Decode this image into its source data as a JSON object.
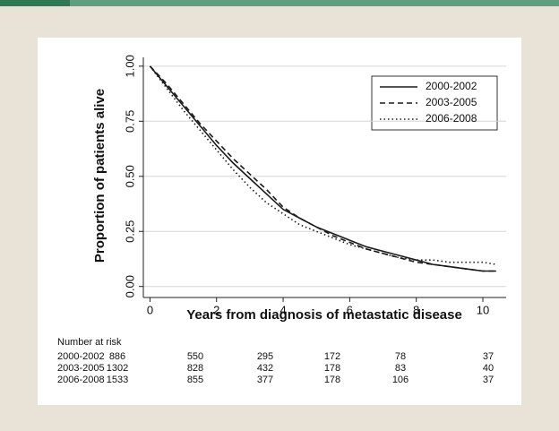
{
  "chart_data": {
    "type": "line",
    "xlabel": "Years from diagnosis of metastatic disease",
    "ylabel": "Proportion of patients alive",
    "x": [
      0,
      0.5,
      1,
      1.5,
      2,
      2.5,
      3,
      3.5,
      4,
      4.5,
      5,
      5.5,
      6,
      6.5,
      7,
      7.5,
      8,
      8.5,
      9,
      9.5,
      10,
      10.4
    ],
    "series": [
      {
        "name": "2000-2002",
        "color": "#1a1a1a",
        "dash": "solid",
        "values": [
          1.0,
          0.91,
          0.82,
          0.73,
          0.64,
          0.56,
          0.49,
          0.42,
          0.35,
          0.31,
          0.27,
          0.24,
          0.21,
          0.18,
          0.16,
          0.14,
          0.12,
          0.1,
          0.09,
          0.08,
          0.07,
          0.07
        ]
      },
      {
        "name": "2003-2005",
        "color": "#1a1a1a",
        "dash": "dashed",
        "values": [
          1.0,
          0.92,
          0.83,
          0.74,
          0.66,
          0.58,
          0.51,
          0.44,
          0.36,
          0.31,
          0.27,
          0.23,
          0.2,
          0.17,
          0.15,
          0.13,
          0.11,
          0.1,
          0.09,
          0.08,
          0.07,
          0.07
        ]
      },
      {
        "name": "2006-2008",
        "color": "#1a1a1a",
        "dash": "dotted",
        "values": [
          1.0,
          0.9,
          0.8,
          0.71,
          0.62,
          0.53,
          0.45,
          0.38,
          0.33,
          0.28,
          0.25,
          0.22,
          0.19,
          0.17,
          0.15,
          0.13,
          0.12,
          0.12,
          0.11,
          0.11,
          0.11,
          0.1
        ]
      }
    ],
    "xlim": [
      -0.2,
      10.7
    ],
    "xticks": [
      0,
      2,
      4,
      6,
      8,
      10
    ],
    "ylim": [
      -0.05,
      1.04
    ],
    "yticks": [
      {
        "value": 0,
        "label": "0.00"
      },
      {
        "value": 0.25,
        "label": "0.25"
      },
      {
        "value": 0.5,
        "label": "0.50"
      },
      {
        "value": 0.75,
        "label": "0.75"
      },
      {
        "value": 1,
        "label": "1.00"
      }
    ],
    "grid": true,
    "legend": "upper-right",
    "risk_table": {
      "title": "Number at risk",
      "rows": [
        {
          "label": "2000-2002",
          "values": [
            886,
            550,
            295,
            172,
            78,
            37
          ]
        },
        {
          "label": "2003-2005",
          "values": [
            1302,
            828,
            432,
            178,
            83,
            40
          ]
        },
        {
          "label": "2006-2008",
          "values": [
            1533,
            855,
            377,
            178,
            106,
            37
          ]
        }
      ]
    }
  }
}
